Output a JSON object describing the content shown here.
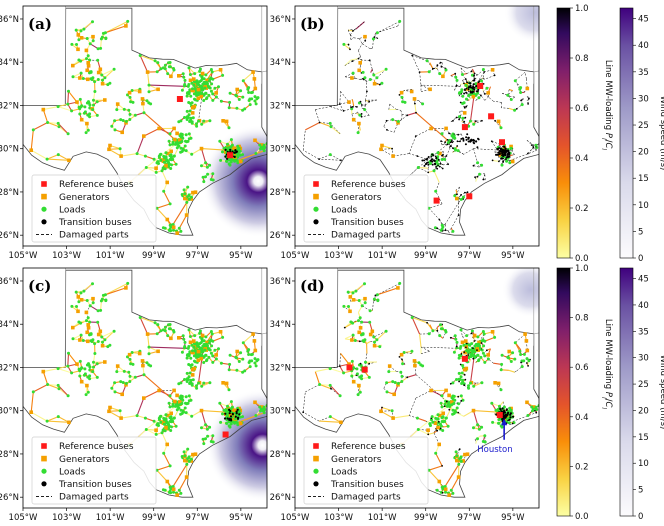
{
  "chart_data": {
    "type": "scatter",
    "description_keys": "Four-panel map figure of the Texas power grid with two colorbars per row",
    "panels": [
      {
        "label": "(a)",
        "row": 0,
        "col": 0,
        "hurricane_center": [
          -94.2,
          28.5
        ],
        "hurricane_radius_deg": 2.6,
        "mode": "loading",
        "reference_buses": [
          [
            -97.8,
            32.3
          ],
          [
            -95.5,
            29.7
          ]
        ]
      },
      {
        "label": "(b)",
        "row": 0,
        "col": 1,
        "hurricane_center": [
          -94.0,
          36.3
        ],
        "hurricane_radius_deg": 1.4,
        "mode": "damaged",
        "reference_buses": [
          [
            -97.2,
            31.0
          ],
          [
            -96.0,
            31.5
          ],
          [
            -95.5,
            30.3
          ],
          [
            -98.5,
            27.6
          ],
          [
            -97.0,
            27.8
          ],
          [
            -96.5,
            32.9
          ]
        ]
      },
      {
        "label": "(c)",
        "row": 1,
        "col": 0,
        "hurricane_center": [
          -94.0,
          28.4
        ],
        "hurricane_radius_deg": 2.6,
        "mode": "loading",
        "reference_buses": [
          [
            -95.7,
            28.9
          ]
        ]
      },
      {
        "label": "(d)",
        "row": 1,
        "col": 1,
        "hurricane_center": [
          -94.2,
          35.6
        ],
        "hurricane_radius_deg": 1.3,
        "mode": "damaged",
        "reference_buses": [
          [
            -101.8,
            31.9
          ],
          [
            -102.5,
            32.0
          ],
          [
            -97.2,
            32.4
          ],
          [
            -95.6,
            29.8
          ]
        ],
        "annotation": "Houston"
      }
    ],
    "x_axis": {
      "ticks": [
        -105,
        -103,
        -101,
        -99,
        -97,
        -95
      ],
      "tick_labels": [
        "105°W",
        "103°W",
        "101°W",
        "99°W",
        "97°W",
        "95°W"
      ],
      "lim": [
        -105,
        -93.8
      ]
    },
    "y_axis": {
      "ticks": [
        26,
        28,
        30,
        32,
        34,
        36
      ],
      "tick_labels": [
        "26°N",
        "28°N",
        "30°N",
        "32°N",
        "34°N",
        "36°N"
      ],
      "lim": [
        25.5,
        36.6
      ]
    },
    "legend": {
      "location": "lower-left",
      "items": [
        {
          "label": "Reference buses",
          "marker": "square",
          "color": "#ff1a1a"
        },
        {
          "label": "Generators",
          "marker": "square",
          "color": "#f5a000"
        },
        {
          "label": "Loads",
          "marker": "circle",
          "color": "#33dd33"
        },
        {
          "label": "Transition buses",
          "marker": "circle",
          "color": "#000000"
        },
        {
          "label": "Damaged parts",
          "marker": "dashed-line",
          "color": "#000000"
        }
      ]
    },
    "colorbars": [
      {
        "label": "Line MW-loading P_l/C_l",
        "label_text": "Line MW-loading",
        "label_sub": "P",
        "label_sub2": "C",
        "sub_index": "l",
        "range": [
          0.0,
          1.0
        ],
        "ticks": [
          0.0,
          0.2,
          0.4,
          0.6,
          0.8,
          1.0
        ],
        "tick_labels": [
          "0.0",
          "0.2",
          "0.4",
          "0.6",
          "0.8",
          "1.0"
        ],
        "colormap": "inferno_r"
      },
      {
        "label": "Wind speed (m/s)",
        "range": [
          0,
          47
        ],
        "ticks": [
          0,
          5,
          10,
          15,
          20,
          25,
          30,
          35,
          40,
          45
        ],
        "tick_labels": [
          "0",
          "5",
          "10",
          "15",
          "20",
          "25",
          "30",
          "35",
          "40",
          "45"
        ],
        "colormap": "Purples"
      }
    ]
  },
  "colors": {
    "load": "#33dd33",
    "generator": "#f5a000",
    "reference": "#ff1a1a",
    "transition": "#000000",
    "wind_max": "#3f007d",
    "border": "#444444"
  },
  "icons": {
    "houston_arrow": "arrow-icon"
  }
}
